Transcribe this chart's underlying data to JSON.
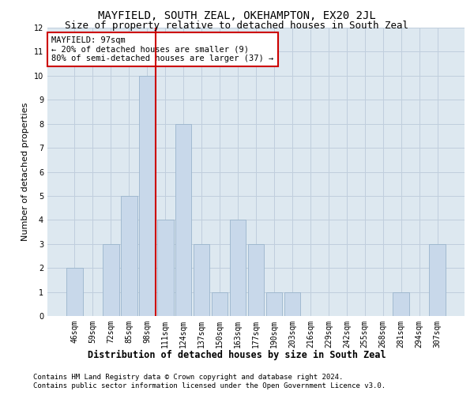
{
  "title": "MAYFIELD, SOUTH ZEAL, OKEHAMPTON, EX20 2JL",
  "subtitle": "Size of property relative to detached houses in South Zeal",
  "xlabel_bottom": "Distribution of detached houses by size in South Zeal",
  "ylabel": "Number of detached properties",
  "categories": [
    "46sqm",
    "59sqm",
    "72sqm",
    "85sqm",
    "98sqm",
    "111sqm",
    "124sqm",
    "137sqm",
    "150sqm",
    "163sqm",
    "177sqm",
    "190sqm",
    "203sqm",
    "216sqm",
    "229sqm",
    "242sqm",
    "255sqm",
    "268sqm",
    "281sqm",
    "294sqm",
    "307sqm"
  ],
  "values": [
    2,
    0,
    3,
    5,
    10,
    4,
    8,
    3,
    1,
    4,
    3,
    1,
    1,
    0,
    0,
    0,
    0,
    0,
    1,
    0,
    3
  ],
  "bar_color": "#c8d8ea",
  "bar_edge_color": "#9ab4cc",
  "highlight_line_index": 4,
  "highlight_line_color": "#cc0000",
  "annotation_line1": "MAYFIELD: 97sqm",
  "annotation_line2": "← 20% of detached houses are smaller (9)",
  "annotation_line3": "80% of semi-detached houses are larger (37) →",
  "annotation_box_color": "#ffffff",
  "annotation_box_edge": "#cc0000",
  "ylim": [
    0,
    12
  ],
  "yticks": [
    0,
    1,
    2,
    3,
    4,
    5,
    6,
    7,
    8,
    9,
    10,
    11,
    12
  ],
  "footer1": "Contains HM Land Registry data © Crown copyright and database right 2024.",
  "footer2": "Contains public sector information licensed under the Open Government Licence v3.0.",
  "bg_color": "#ffffff",
  "plot_bg_color": "#dde8f0",
  "grid_color": "#c0cedd",
  "title_fontsize": 10,
  "subtitle_fontsize": 9,
  "ylabel_fontsize": 8,
  "xlabel_bottom_fontsize": 8.5,
  "tick_fontsize": 7,
  "annotation_fontsize": 7.5,
  "footer_fontsize": 6.5
}
